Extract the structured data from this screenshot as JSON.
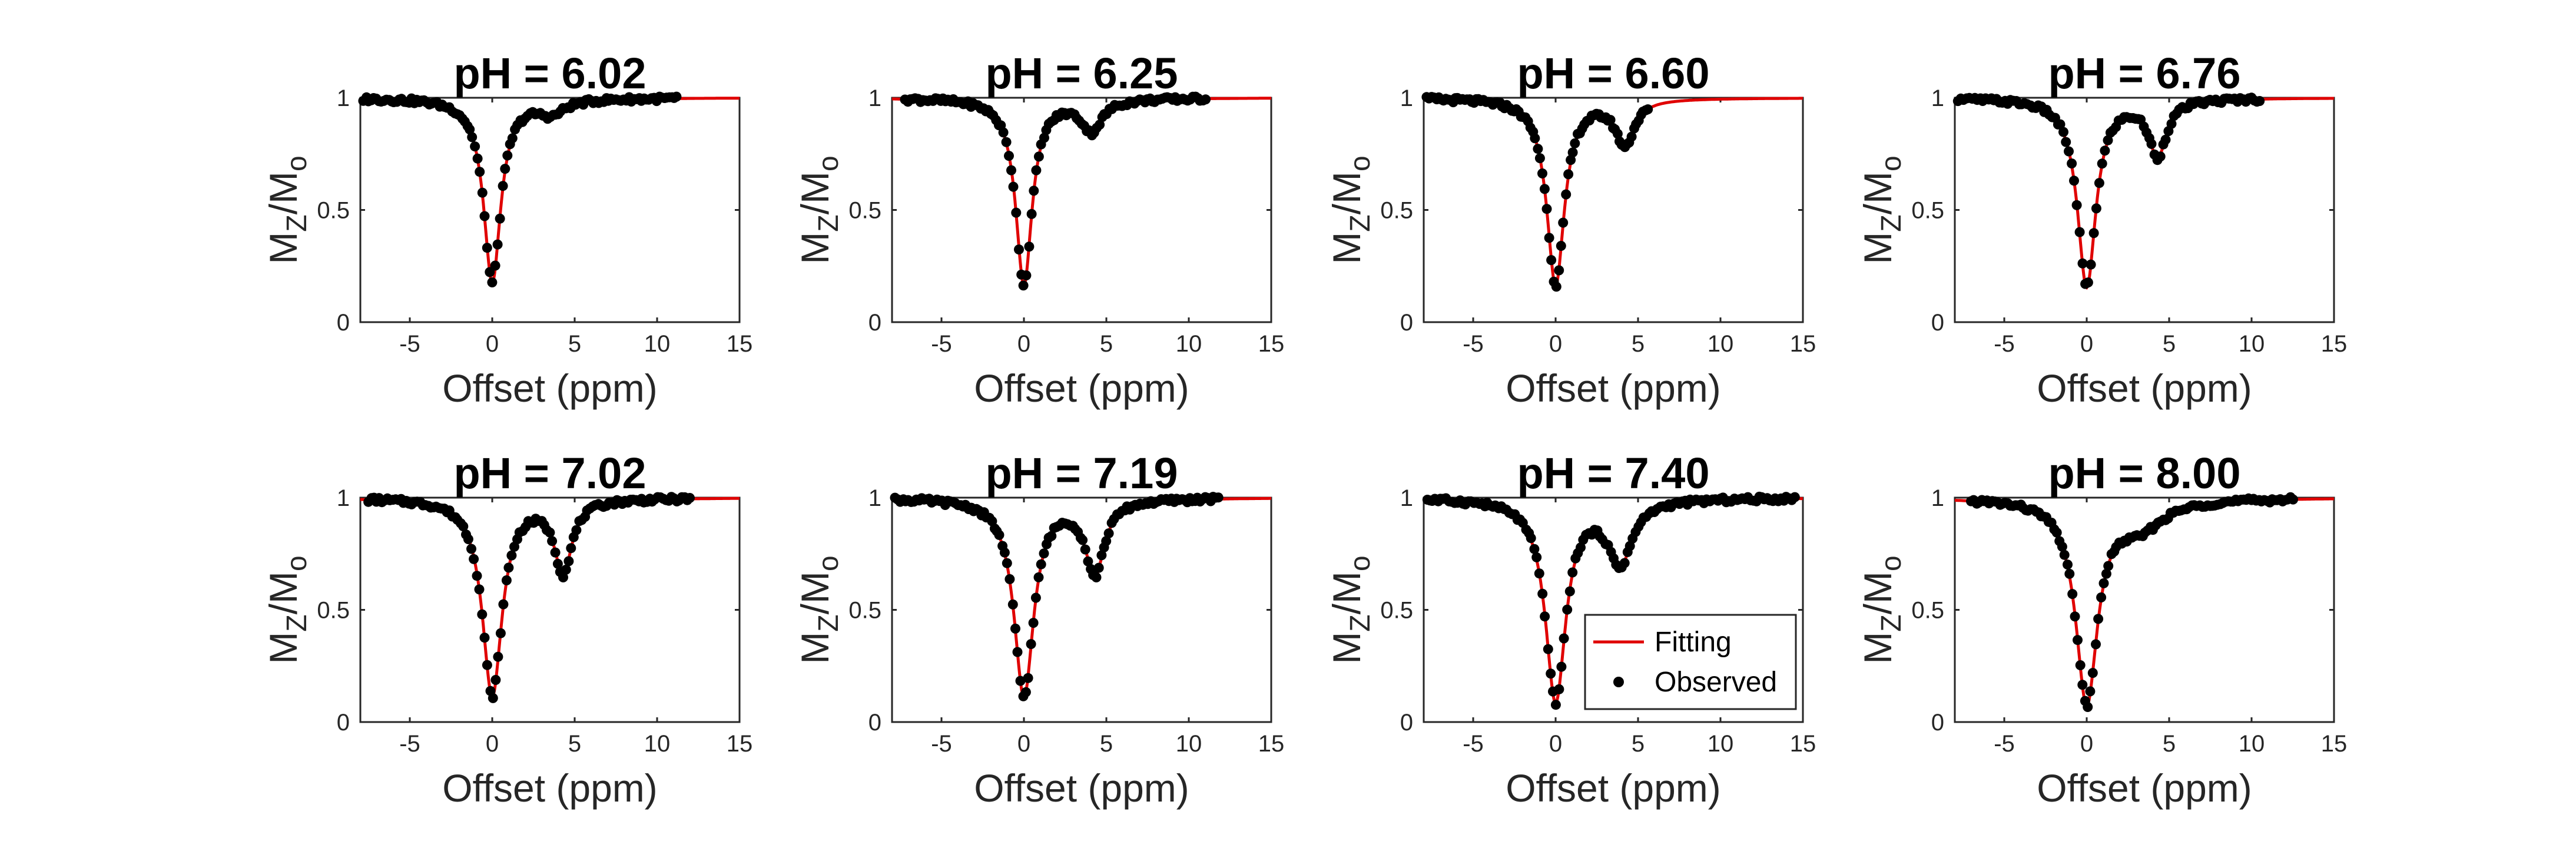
{
  "figure": {
    "background": "#ffffff"
  },
  "style": {
    "fit_color": "#e00000",
    "observed_color": "#000000",
    "axis_color": "#262626"
  },
  "legend": {
    "panel_index": 6,
    "placement": "bottom-right",
    "items": [
      "Fitting",
      "Observed"
    ]
  },
  "chart_data": [
    {
      "type": "line",
      "title": "pH = 6.02",
      "xlabel": "Offset (ppm)",
      "ylabel": "M_Z/M_o",
      "xlim": [
        -8,
        15
      ],
      "ylim": [
        0,
        1
      ],
      "xticks": [
        "-5",
        "0",
        "5",
        "10",
        "15"
      ],
      "yticks": [
        "0",
        "0.5",
        "1"
      ],
      "grid": false,
      "model": {
        "baseline": 1.0,
        "d0": 0.82,
        "w0": 1.25,
        "peaks": [
          {
            "center": 3.6,
            "depth": 0.06,
            "width": 1.8
          }
        ]
      },
      "series": [
        {
          "name": "Fitting",
          "kind": "line",
          "x_range": [
            -8,
            15
          ]
        },
        {
          "name": "Observed",
          "kind": "scatter",
          "x_range": [
            -7.8,
            11.2
          ],
          "points": 125
        }
      ]
    },
    {
      "type": "line",
      "title": "pH = 6.25",
      "xlabel": "Offset (ppm)",
      "ylabel": "M_Z/M_o",
      "xlim": [
        -8,
        15
      ],
      "ylim": [
        0,
        1
      ],
      "xticks": [
        "-5",
        "0",
        "5",
        "10",
        "15"
      ],
      "yticks": [
        "0",
        "0.5",
        "1"
      ],
      "grid": false,
      "model": {
        "baseline": 1.0,
        "d0": 0.83,
        "w0": 1.2,
        "peaks": [
          {
            "center": 4.1,
            "depth": 0.14,
            "width": 1.5
          }
        ]
      },
      "series": [
        {
          "name": "Fitting",
          "kind": "line",
          "x_range": [
            -8,
            15
          ]
        },
        {
          "name": "Observed",
          "kind": "scatter",
          "x_range": [
            -7.2,
            11.0
          ],
          "points": 120
        }
      ]
    },
    {
      "type": "line",
      "title": "pH = 6.60",
      "xlabel": "Offset (ppm)",
      "ylabel": "M_Z/M_o",
      "xlim": [
        -8,
        15
      ],
      "ylim": [
        0,
        1
      ],
      "xticks": [
        "-5",
        "0",
        "5",
        "10",
        "15"
      ],
      "yticks": [
        "0",
        "0.5",
        "1"
      ],
      "grid": false,
      "model": {
        "baseline": 1.0,
        "d0": 0.83,
        "w0": 1.3,
        "peaks": [
          {
            "center": 4.2,
            "depth": 0.2,
            "width": 1.4
          }
        ]
      },
      "series": [
        {
          "name": "Fitting",
          "kind": "line",
          "x_range": [
            -8,
            15
          ]
        },
        {
          "name": "Observed",
          "kind": "scatter",
          "x_range": [
            -7.8,
            5.6
          ],
          "points": 95
        }
      ]
    },
    {
      "type": "line",
      "title": "pH = 6.76",
      "xlabel": "Offset (ppm)",
      "ylabel": "M_Z/M_o",
      "xlim": [
        -8,
        15
      ],
      "ylim": [
        0,
        1
      ],
      "xticks": [
        "-5",
        "0",
        "5",
        "10",
        "15"
      ],
      "yticks": [
        "0",
        "0.5",
        "1"
      ],
      "grid": false,
      "model": {
        "baseline": 1.0,
        "d0": 0.84,
        "w0": 1.35,
        "peaks": [
          {
            "center": 4.3,
            "depth": 0.25,
            "width": 1.3
          }
        ]
      },
      "series": [
        {
          "name": "Fitting",
          "kind": "line",
          "x_range": [
            -8,
            15
          ]
        },
        {
          "name": "Observed",
          "kind": "scatter",
          "x_range": [
            -7.8,
            10.5
          ],
          "points": 110
        }
      ]
    },
    {
      "type": "line",
      "title": "pH = 7.02",
      "xlabel": "Offset (ppm)",
      "ylabel": "M_Z/M_o",
      "xlim": [
        -8,
        15
      ],
      "ylim": [
        0,
        1
      ],
      "xticks": [
        "-5",
        "0",
        "5",
        "10",
        "15"
      ],
      "yticks": [
        "0",
        "0.5",
        "1"
      ],
      "grid": false,
      "model": {
        "baseline": 1.0,
        "d0": 0.88,
        "w0": 1.45,
        "peaks": [
          {
            "center": 4.3,
            "depth": 0.32,
            "width": 1.3
          }
        ]
      },
      "series": [
        {
          "name": "Fitting",
          "kind": "line",
          "x_range": [
            -8,
            15
          ]
        },
        {
          "name": "Observed",
          "kind": "scatter",
          "x_range": [
            -7.5,
            12.0
          ],
          "points": 120
        }
      ]
    },
    {
      "type": "line",
      "title": "pH = 7.19",
      "xlabel": "Offset (ppm)",
      "ylabel": "M_Z/M_o",
      "xlim": [
        -8,
        15
      ],
      "ylim": [
        0,
        1
      ],
      "xticks": [
        "-5",
        "0",
        "5",
        "10",
        "15"
      ],
      "yticks": [
        "0",
        "0.5",
        "1"
      ],
      "grid": false,
      "model": {
        "baseline": 1.0,
        "d0": 0.88,
        "w0": 1.45,
        "peaks": [
          {
            "center": 4.3,
            "depth": 0.33,
            "width": 1.4
          }
        ]
      },
      "series": [
        {
          "name": "Fitting",
          "kind": "line",
          "x_range": [
            -8,
            15
          ]
        },
        {
          "name": "Observed",
          "kind": "scatter",
          "x_range": [
            -7.8,
            11.8
          ],
          "points": 125
        }
      ]
    },
    {
      "type": "line",
      "title": "pH = 7.40",
      "xlabel": "Offset (ppm)",
      "ylabel": "M_Z/M_o",
      "xlim": [
        -8,
        15
      ],
      "ylim": [
        0,
        1
      ],
      "xticks": [
        "-5",
        "0",
        "5",
        "10",
        "15"
      ],
      "yticks": [
        "0",
        "0.5",
        "1"
      ],
      "grid": false,
      "model": {
        "baseline": 1.0,
        "d0": 0.9,
        "w0": 1.5,
        "peaks": [
          {
            "center": 3.9,
            "depth": 0.28,
            "width": 1.8
          }
        ]
      },
      "series": [
        {
          "name": "Fitting",
          "kind": "line",
          "x_range": [
            -8,
            15
          ]
        },
        {
          "name": "Observed",
          "kind": "scatter",
          "x_range": [
            -7.8,
            14.5
          ],
          "points": 135
        }
      ]
    },
    {
      "type": "line",
      "title": "pH = 8.00",
      "xlabel": "Offset (ppm)",
      "ylabel": "M_Z/M_o",
      "xlim": [
        -8,
        15
      ],
      "ylim": [
        0,
        1
      ],
      "xticks": [
        "-5",
        "0",
        "5",
        "10",
        "15"
      ],
      "yticks": [
        "0",
        "0.5",
        "1"
      ],
      "grid": false,
      "model": {
        "baseline": 1.0,
        "d0": 0.9,
        "w0": 1.6,
        "peaks": [
          {
            "center": 3.2,
            "depth": 0.12,
            "width": 3.5
          }
        ]
      },
      "series": [
        {
          "name": "Fitting",
          "kind": "line",
          "x_range": [
            -8,
            15
          ]
        },
        {
          "name": "Observed",
          "kind": "scatter",
          "x_range": [
            -7.0,
            12.5
          ],
          "points": 125
        }
      ]
    }
  ]
}
